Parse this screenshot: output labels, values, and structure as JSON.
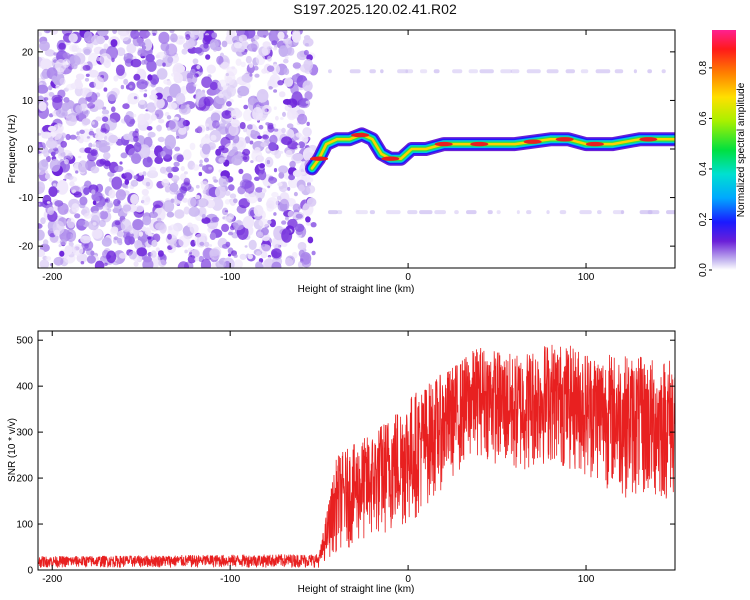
{
  "title": "S197.2025.120.02.41.R02",
  "colors": {
    "snr_line": "#e82020",
    "noise_purple": "#7a2ee0",
    "noise_light": "#d8c8f4"
  },
  "chart_data": [
    {
      "type": "heatmap",
      "xlabel": "Height of straight line (km)",
      "ylabel": "Frequency (Hz)",
      "xlim": [
        -208,
        150
      ],
      "ylim": [
        -24.5,
        24.5
      ],
      "xticks": [
        -200,
        -100,
        0,
        100
      ],
      "xtick_labels": [
        "-200",
        "-100",
        "0",
        "100"
      ],
      "yticks": [
        -20,
        -10,
        0,
        10,
        20
      ],
      "ytick_labels": [
        "-20",
        "-10",
        "0",
        "10",
        "20"
      ],
      "colorbar": {
        "label": "Normalized spectral amplitude",
        "range": [
          0.0,
          0.95
        ],
        "ticks": [
          0.0,
          0.2,
          0.4,
          0.6,
          0.8
        ],
        "tick_labels": [
          "0.0",
          "0.2",
          "0.4",
          "0.6",
          "0.8"
        ],
        "colormap": "rainbow"
      },
      "noise_region_x": [
        -208,
        -53
      ],
      "signal_track": [
        {
          "x": -54,
          "freq": -4
        },
        {
          "x": -50,
          "freq": -2
        },
        {
          "x": -46,
          "freq": 1
        },
        {
          "x": -40,
          "freq": 2
        },
        {
          "x": -33,
          "freq": 2
        },
        {
          "x": -26,
          "freq": 3
        },
        {
          "x": -20,
          "freq": 2
        },
        {
          "x": -15,
          "freq": -1
        },
        {
          "x": -10,
          "freq": -2
        },
        {
          "x": -4,
          "freq": -2
        },
        {
          "x": 2,
          "freq": 0
        },
        {
          "x": 10,
          "freq": 0
        },
        {
          "x": 20,
          "freq": 1
        },
        {
          "x": 40,
          "freq": 1
        },
        {
          "x": 60,
          "freq": 1
        },
        {
          "x": 80,
          "freq": 2
        },
        {
          "x": 90,
          "freq": 2
        },
        {
          "x": 100,
          "freq": 1
        },
        {
          "x": 115,
          "freq": 1
        },
        {
          "x": 130,
          "freq": 2
        },
        {
          "x": 150,
          "freq": 2
        }
      ],
      "faint_lines_freq": [
        16,
        -13
      ]
    },
    {
      "type": "line",
      "xlabel": "Height of straight line (km)",
      "ylabel": "SNR (10 * v/v)",
      "xlim": [
        -208,
        150
      ],
      "ylim": [
        0,
        520
      ],
      "xticks": [
        -200,
        -100,
        0,
        100
      ],
      "xtick_labels": [
        "-200",
        "-100",
        "0",
        "100"
      ],
      "yticks": [
        0,
        100,
        200,
        300,
        400,
        500
      ],
      "ytick_labels": [
        "0",
        "100",
        "200",
        "300",
        "400",
        "500"
      ],
      "series": [
        {
          "envelope_x": [
            -208,
            -50,
            -40,
            -20,
            0,
            20,
            40,
            60,
            80,
            100,
            120,
            140,
            150
          ],
          "envelope_low": [
            5,
            5,
            40,
            60,
            90,
            180,
            250,
            200,
            230,
            200,
            160,
            140,
            150
          ],
          "envelope_high": [
            30,
            35,
            250,
            300,
            380,
            430,
            490,
            470,
            500,
            480,
            470,
            460,
            470
          ]
        }
      ]
    }
  ]
}
